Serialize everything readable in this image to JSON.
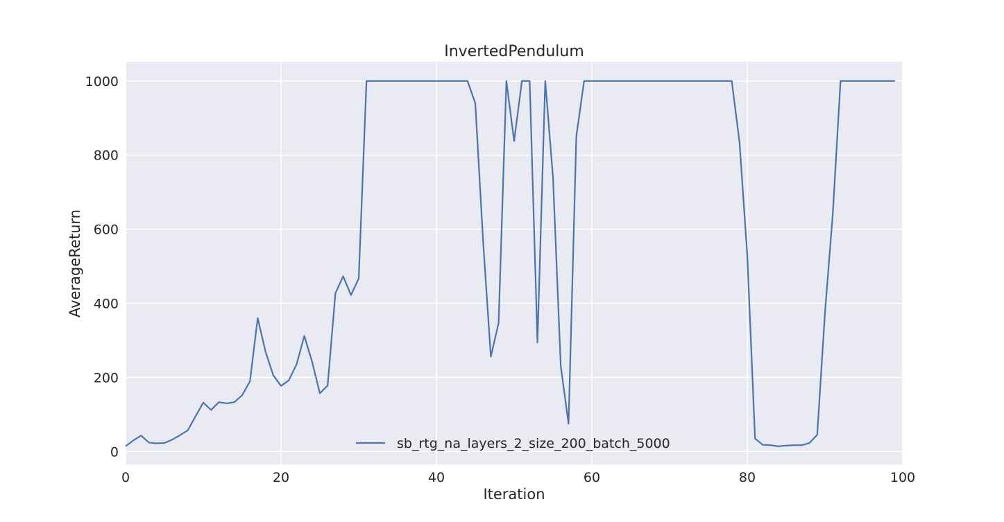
{
  "chart_data": {
    "type": "line",
    "title": "InvertedPendulum",
    "xlabel": "Iteration",
    "ylabel": "AverageReturn",
    "xlim": [
      0,
      100
    ],
    "ylim": [
      -35,
      1052
    ],
    "xticks": [
      0,
      20,
      40,
      60,
      80,
      100
    ],
    "yticks": [
      0,
      200,
      400,
      600,
      800,
      1000
    ],
    "xtick_labels": [
      "0",
      "20",
      "40",
      "60",
      "80",
      "100"
    ],
    "ytick_labels": [
      "0",
      "200",
      "400",
      "600",
      "800",
      "1000"
    ],
    "grid": true,
    "background": "#eaeaf2",
    "legend_position": "lower center",
    "series": [
      {
        "name": "sb_rtg_na_layers_2_size_200_batch_5000",
        "color": "#4c72b0",
        "x": [
          0,
          1,
          2,
          3,
          4,
          5,
          6,
          7,
          8,
          9,
          10,
          11,
          12,
          13,
          14,
          15,
          16,
          17,
          18,
          19,
          20,
          21,
          22,
          23,
          24,
          25,
          26,
          27,
          28,
          29,
          30,
          31,
          32,
          33,
          34,
          35,
          36,
          37,
          38,
          39,
          40,
          41,
          42,
          43,
          44,
          45,
          46,
          47,
          48,
          49,
          50,
          51,
          52,
          53,
          54,
          55,
          56,
          57,
          58,
          59,
          60,
          61,
          62,
          63,
          64,
          65,
          66,
          67,
          68,
          69,
          70,
          71,
          72,
          73,
          74,
          75,
          76,
          77,
          78,
          79,
          80,
          81,
          82,
          83,
          84,
          85,
          86,
          87,
          88,
          89,
          90,
          91,
          92,
          93,
          94,
          95,
          96,
          97,
          98,
          99
        ],
        "y": [
          14,
          30,
          43,
          24,
          22,
          23,
          32,
          44,
          57,
          95,
          132,
          112,
          133,
          130,
          133,
          152,
          189,
          360,
          270,
          206,
          177,
          192,
          235,
          312,
          242,
          157,
          178,
          427,
          473,
          422,
          467,
          1000,
          1000,
          1000,
          1000,
          1000,
          1000,
          1000,
          1000,
          1000,
          1000,
          1000,
          1000,
          1000,
          1000,
          940,
          570,
          256,
          347,
          1000,
          838,
          1000,
          1000,
          294,
          1000,
          740,
          230,
          75,
          850,
          1000,
          1000,
          1000,
          1000,
          1000,
          1000,
          1000,
          1000,
          1000,
          1000,
          1000,
          1000,
          1000,
          1000,
          1000,
          1000,
          1000,
          1000,
          1000,
          1000,
          835,
          530,
          35,
          18,
          17,
          14,
          16,
          17,
          17,
          23,
          45,
          375,
          640,
          1000,
          1000,
          1000,
          1000,
          1000,
          1000,
          1000,
          1000
        ]
      }
    ]
  }
}
